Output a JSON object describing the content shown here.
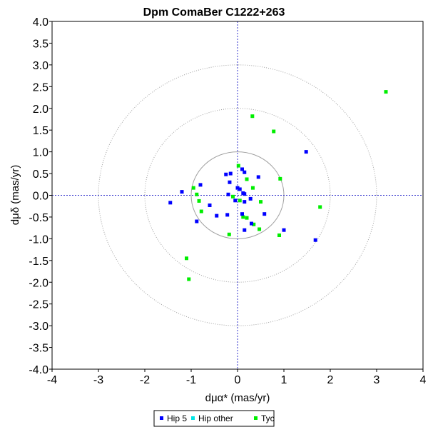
{
  "chart_data": {
    "type": "scatter",
    "title": "Dpm ComaBer  C1222+263",
    "xlabel": "dμα* (mas/yr)",
    "ylabel": "dμδ (mas/yr)",
    "xlim": [
      -4,
      4
    ],
    "ylim": [
      -4,
      4
    ],
    "x_ticks": [
      -4,
      -3,
      -2,
      -1,
      0,
      1,
      2,
      3,
      4
    ],
    "y_ticks": [
      -4.0,
      -3.5,
      -3.0,
      -2.5,
      -2.0,
      -1.5,
      -1.0,
      -0.5,
      0.0,
      0.5,
      1.0,
      1.5,
      2.0,
      2.5,
      3.0,
      3.5,
      4.0
    ],
    "x_tick_labels": [
      "-4",
      "-3",
      "-2",
      "-1",
      "0",
      "1",
      "2",
      "3",
      "4"
    ],
    "y_tick_labels": [
      "-4.0",
      "-3.5",
      "-3.0",
      "-2.5",
      "-2.0",
      "-1.5",
      "-1.0",
      "-0.5",
      "0.0",
      "0.5",
      "1.0",
      "1.5",
      "2.0",
      "2.5",
      "3.0",
      "3.5",
      "4.0"
    ],
    "grid": false,
    "reference_circles": [
      1,
      2,
      3
    ],
    "reference_lines": {
      "x": 0,
      "y": 0
    },
    "legend_position": "bottom-center",
    "series": [
      {
        "name": "Hip 5",
        "color": "#0000ff",
        "points": [
          [
            -0.25,
            0.48
          ],
          [
            -0.15,
            0.5
          ],
          [
            -0.17,
            0.3
          ],
          [
            0.1,
            0.6
          ],
          [
            0.15,
            0.53
          ],
          [
            0.45,
            0.42
          ],
          [
            -0.8,
            0.24
          ],
          [
            -1.2,
            0.08
          ],
          [
            -1.45,
            -0.17
          ],
          [
            -0.2,
            0.02
          ],
          [
            0.0,
            0.17
          ],
          [
            0.05,
            0.14
          ],
          [
            0.12,
            0.05
          ],
          [
            0.15,
            0.03
          ],
          [
            -0.05,
            -0.12
          ],
          [
            0.15,
            -0.15
          ],
          [
            0.28,
            -0.08
          ],
          [
            -0.6,
            -0.23
          ],
          [
            -0.45,
            -0.47
          ],
          [
            -0.22,
            -0.45
          ],
          [
            0.1,
            -0.43
          ],
          [
            0.58,
            -0.43
          ],
          [
            -0.88,
            -0.6
          ],
          [
            0.3,
            -0.65
          ],
          [
            0.15,
            -0.8
          ],
          [
            1.0,
            -0.8
          ],
          [
            1.48,
            1.0
          ],
          [
            1.68,
            -1.03
          ]
        ]
      },
      {
        "name": "Hip other",
        "color": "#00e5e5",
        "points": []
      },
      {
        "name": "Tyc",
        "color": "#00ee00",
        "points": [
          [
            3.2,
            2.38
          ],
          [
            0.32,
            1.82
          ],
          [
            0.78,
            1.47
          ],
          [
            0.02,
            0.68
          ],
          [
            0.92,
            0.38
          ],
          [
            0.2,
            0.37
          ],
          [
            -0.95,
            0.17
          ],
          [
            0.33,
            0.17
          ],
          [
            -0.88,
            0.02
          ],
          [
            -0.1,
            -0.03
          ],
          [
            0.05,
            -0.12
          ],
          [
            -0.83,
            -0.13
          ],
          [
            0.5,
            -0.15
          ],
          [
            -0.78,
            -0.37
          ],
          [
            1.78,
            -0.27
          ],
          [
            0.12,
            -0.5
          ],
          [
            0.2,
            -0.52
          ],
          [
            0.35,
            -0.67
          ],
          [
            0.47,
            -0.78
          ],
          [
            -0.18,
            -0.9
          ],
          [
            0.9,
            -0.92
          ],
          [
            -1.1,
            -1.45
          ],
          [
            -1.05,
            -1.93
          ]
        ]
      }
    ]
  }
}
